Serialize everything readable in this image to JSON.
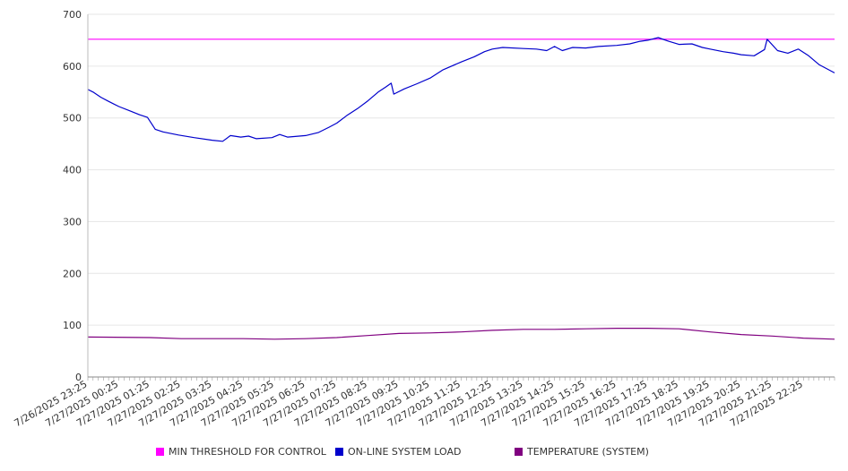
{
  "chart_data": {
    "type": "line",
    "y_ticks": [
      "0",
      "100",
      "200",
      "300",
      "400",
      "500",
      "600",
      "700"
    ],
    "ylim": [
      0,
      700
    ],
    "grid": true,
    "legend_position": "bottom",
    "x_labels": [
      "7/26/2025 23:25",
      "7/27/2025 00:25",
      "7/27/2025 01:25",
      "7/27/2025 02:25",
      "7/27/2025 03:25",
      "7/27/2025 04:25",
      "7/27/2025 05:25",
      "7/27/2025 06:25",
      "7/27/2025 07:25",
      "7/27/2025 08:25",
      "7/27/2025 09:25",
      "7/27/2025 10:25",
      "7/27/2025 11:25",
      "7/27/2025 12:25",
      "7/27/2025 13:25",
      "7/27/2025 14:25",
      "7/27/2025 15:25",
      "7/27/2025 16:25",
      "7/27/2025 17:25",
      "7/27/2025 18:25",
      "7/27/2025 19:25",
      "7/27/2025 20:25",
      "7/27/2025 21:25",
      "7/27/2025 22:25"
    ],
    "x_start": "7/26/2025 23:25",
    "x_end": "7/27/2025 23:25",
    "series": [
      {
        "name": "MIN THRESHOLD FOR CONTROL",
        "color": "#ff00ff",
        "points": [
          [
            "7/26/2025 23:25",
            652
          ],
          [
            "7/27/2025 23:25",
            652
          ]
        ]
      },
      {
        "name": "ON-LINE SYSTEM LOAD",
        "color": "#0000cc",
        "points": [
          [
            "7/26/2025 23:25",
            555
          ],
          [
            "7/26/2025 23:35",
            550
          ],
          [
            "7/26/2025 23:50",
            540
          ],
          [
            "7/27/2025 00:05",
            532
          ],
          [
            "7/27/2025 00:25",
            522
          ],
          [
            "7/27/2025 00:45",
            514
          ],
          [
            "7/27/2025 01:05",
            506
          ],
          [
            "7/27/2025 01:20",
            501
          ],
          [
            "7/27/2025 01:35",
            478
          ],
          [
            "7/27/2025 01:50",
            473
          ],
          [
            "7/27/2025 02:20",
            467
          ],
          [
            "7/27/2025 02:50",
            462
          ],
          [
            "7/27/2025 03:25",
            457
          ],
          [
            "7/27/2025 03:45",
            455
          ],
          [
            "7/27/2025 04:00",
            466
          ],
          [
            "7/27/2025 04:20",
            463
          ],
          [
            "7/27/2025 04:35",
            465
          ],
          [
            "7/27/2025 04:50",
            460
          ],
          [
            "7/27/2025 05:20",
            462
          ],
          [
            "7/27/2025 05:35",
            468
          ],
          [
            "7/27/2025 05:50",
            463
          ],
          [
            "7/27/2025 06:25",
            466
          ],
          [
            "7/27/2025 06:50",
            472
          ],
          [
            "7/27/2025 07:10",
            482
          ],
          [
            "7/27/2025 07:25",
            490
          ],
          [
            "7/27/2025 07:45",
            505
          ],
          [
            "7/27/2025 08:05",
            518
          ],
          [
            "7/27/2025 08:25",
            533
          ],
          [
            "7/27/2025 08:45",
            550
          ],
          [
            "7/27/2025 09:00",
            560
          ],
          [
            "7/27/2025 09:10",
            567
          ],
          [
            "7/27/2025 09:15",
            546
          ],
          [
            "7/27/2025 09:35",
            556
          ],
          [
            "7/27/2025 10:00",
            566
          ],
          [
            "7/27/2025 10:25",
            577
          ],
          [
            "7/27/2025 10:50",
            593
          ],
          [
            "7/27/2025 11:25",
            608
          ],
          [
            "7/27/2025 11:50",
            618
          ],
          [
            "7/27/2025 12:10",
            628
          ],
          [
            "7/27/2025 12:25",
            633
          ],
          [
            "7/27/2025 12:45",
            636
          ],
          [
            "7/27/2025 13:25",
            634
          ],
          [
            "7/27/2025 13:50",
            633
          ],
          [
            "7/27/2025 14:10",
            630
          ],
          [
            "7/27/2025 14:25",
            638
          ],
          [
            "7/27/2025 14:40",
            630
          ],
          [
            "7/27/2025 15:00",
            636
          ],
          [
            "7/27/2025 15:25",
            635
          ],
          [
            "7/27/2025 15:50",
            638
          ],
          [
            "7/27/2025 16:25",
            640
          ],
          [
            "7/27/2025 16:50",
            643
          ],
          [
            "7/27/2025 17:10",
            648
          ],
          [
            "7/27/2025 17:25",
            650
          ],
          [
            "7/27/2025 17:45",
            655
          ],
          [
            "7/27/2025 18:05",
            648
          ],
          [
            "7/27/2025 18:25",
            642
          ],
          [
            "7/27/2025 18:50",
            643
          ],
          [
            "7/27/2025 19:10",
            636
          ],
          [
            "7/27/2025 19:25",
            633
          ],
          [
            "7/27/2025 19:50",
            628
          ],
          [
            "7/27/2025 20:10",
            625
          ],
          [
            "7/27/2025 20:25",
            622
          ],
          [
            "7/27/2025 20:50",
            620
          ],
          [
            "7/27/2025 21:10",
            632
          ],
          [
            "7/27/2025 21:15",
            652
          ],
          [
            "7/27/2025 21:35",
            630
          ],
          [
            "7/27/2025 21:55",
            625
          ],
          [
            "7/27/2025 22:15",
            633
          ],
          [
            "7/27/2025 22:35",
            620
          ],
          [
            "7/27/2025 22:55",
            603
          ],
          [
            "7/27/2025 23:25",
            587
          ]
        ]
      },
      {
        "name": "TEMPERATURE (SYSTEM)",
        "color": "#800080",
        "points": [
          [
            "7/26/2025 23:25",
            77
          ],
          [
            "7/27/2025 01:25",
            76
          ],
          [
            "7/27/2025 02:25",
            74
          ],
          [
            "7/27/2025 04:25",
            74
          ],
          [
            "7/27/2025 05:25",
            73
          ],
          [
            "7/27/2025 06:25",
            74
          ],
          [
            "7/27/2025 07:25",
            76
          ],
          [
            "7/27/2025 08:25",
            80
          ],
          [
            "7/27/2025 09:25",
            84
          ],
          [
            "7/27/2025 10:25",
            85
          ],
          [
            "7/27/2025 11:25",
            87
          ],
          [
            "7/27/2025 12:25",
            90
          ],
          [
            "7/27/2025 13:25",
            92
          ],
          [
            "7/27/2025 14:25",
            92
          ],
          [
            "7/27/2025 15:25",
            93
          ],
          [
            "7/27/2025 16:25",
            94
          ],
          [
            "7/27/2025 17:25",
            94
          ],
          [
            "7/27/2025 18:25",
            93
          ],
          [
            "7/27/2025 19:25",
            87
          ],
          [
            "7/27/2025 20:25",
            82
          ],
          [
            "7/27/2025 21:25",
            79
          ],
          [
            "7/27/2025 22:25",
            75
          ],
          [
            "7/27/2025 23:25",
            73
          ]
        ]
      }
    ]
  }
}
